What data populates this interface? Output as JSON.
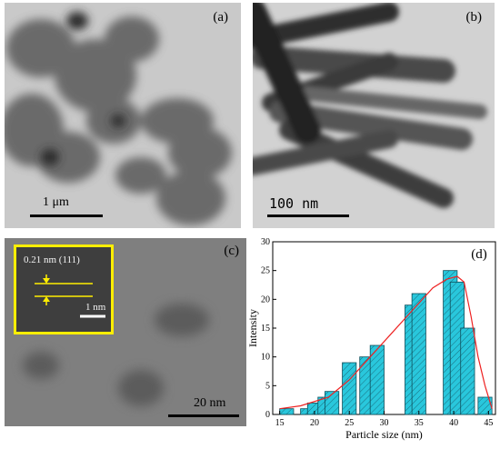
{
  "panels": {
    "a": {
      "label": "(a)",
      "scale": "1 μm"
    },
    "b": {
      "label": "(b)",
      "scale": "100 nm"
    },
    "c": {
      "label": "(c)",
      "scale": "20 nm",
      "inset_spacing": "0.21 nm (111)",
      "inset_scale": "1 nm"
    }
  },
  "colors": {
    "bar_fill": "#29c7dc",
    "curve": "#ee2222",
    "inset_border": "#ffee00"
  },
  "chart_data": {
    "type": "bar",
    "panel_label": "(d)",
    "xlabel": "Particle size (nm)",
    "ylabel": "Intensity",
    "xlim": [
      14,
      46
    ],
    "ylim": [
      0,
      30
    ],
    "xticks": [
      15,
      20,
      25,
      30,
      35,
      40,
      45
    ],
    "yticks": [
      0,
      5,
      10,
      15,
      20,
      25,
      30
    ],
    "bar_width": 2,
    "bars": [
      {
        "x": 16,
        "y": 1
      },
      {
        "x": 19,
        "y": 1
      },
      {
        "x": 20,
        "y": 2
      },
      {
        "x": 21.5,
        "y": 3
      },
      {
        "x": 22.5,
        "y": 4
      },
      {
        "x": 25,
        "y": 9
      },
      {
        "x": 27.5,
        "y": 10
      },
      {
        "x": 29,
        "y": 12
      },
      {
        "x": 34,
        "y": 19
      },
      {
        "x": 35,
        "y": 21
      },
      {
        "x": 39.5,
        "y": 25
      },
      {
        "x": 40.5,
        "y": 23
      },
      {
        "x": 42,
        "y": 15
      },
      {
        "x": 44.5,
        "y": 3
      }
    ],
    "fit_curve": [
      [
        15,
        1
      ],
      [
        18,
        1.5
      ],
      [
        22,
        3
      ],
      [
        25,
        6
      ],
      [
        28,
        10
      ],
      [
        31,
        14
      ],
      [
        34,
        18
      ],
      [
        37,
        22
      ],
      [
        39,
        23.5
      ],
      [
        40.5,
        24
      ],
      [
        41.5,
        23
      ],
      [
        42.5,
        17
      ],
      [
        43.5,
        10
      ],
      [
        44.5,
        5
      ],
      [
        45.5,
        1
      ]
    ]
  }
}
